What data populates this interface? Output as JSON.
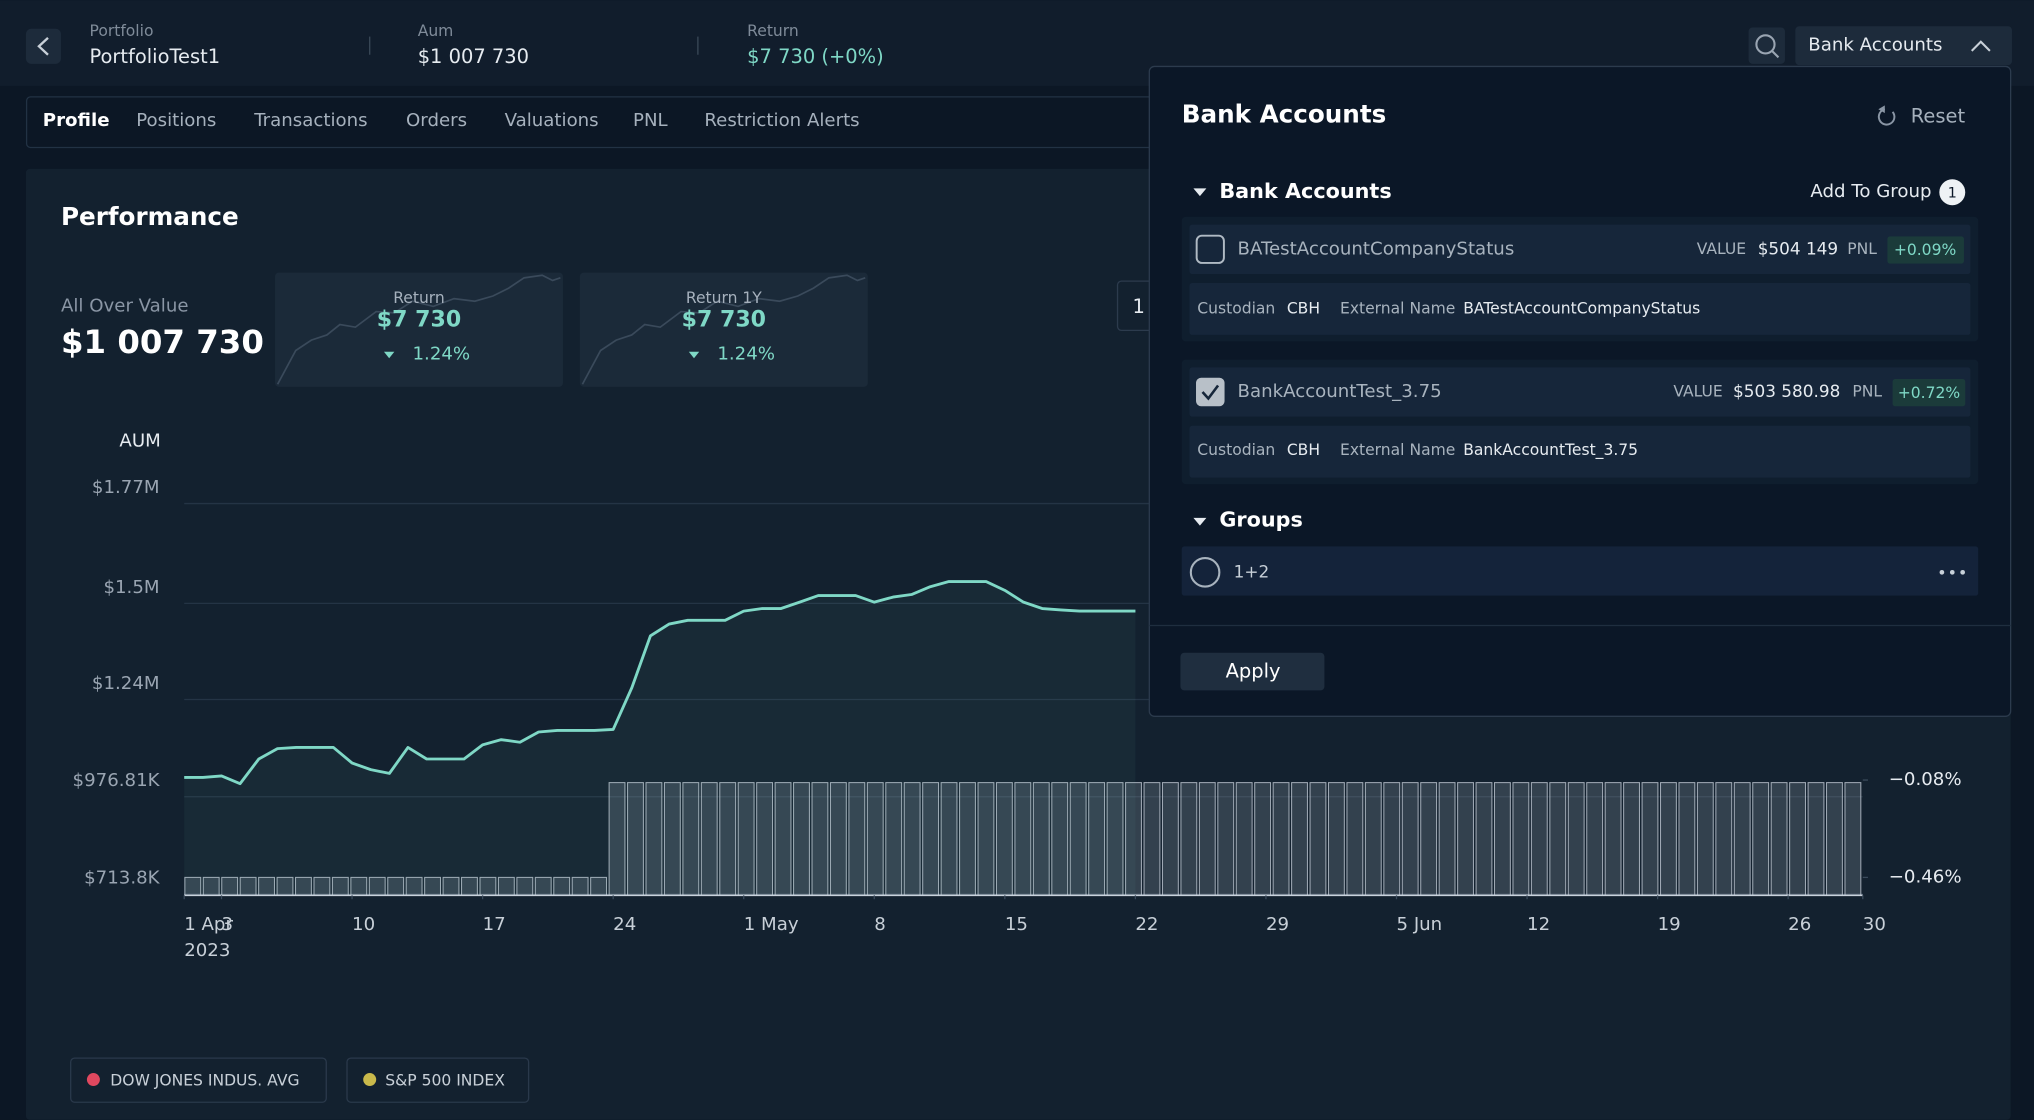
{
  "header": {
    "portfolio_label": "Portfolio",
    "portfolio": "PortfolioTest1",
    "aum_label": "Aum",
    "aum": "$1 007 730",
    "return_label": "Return",
    "return": "$7 730 (+0%)",
    "dropdown": "Bank Accounts"
  },
  "tabs": [
    "Profile",
    "Positions",
    "Transactions",
    "Orders",
    "Valuations",
    "PNL",
    "Restriction Alerts"
  ],
  "performance": {
    "title": "Performance",
    "all_over_value_label": "All Over Value",
    "all_over_value": "$1 007 730",
    "cards": [
      {
        "label": "Return",
        "value": "$7 730",
        "change": "1.24%"
      },
      {
        "label": "Return 1Y",
        "value": "$7 730",
        "change": "1.24%"
      }
    ],
    "period_button": "1"
  },
  "chart": {
    "y_label": "AUM",
    "ylim": [
      668000,
      1770000
    ],
    "yticks": [
      {
        "value": 713800,
        "label": "$713.8K"
      },
      {
        "value": 976810,
        "label": "$976.81K"
      },
      {
        "value": 1240000,
        "label": "$1.24M"
      },
      {
        "value": 1500000,
        "label": "$1.5M"
      },
      {
        "value": 1770000,
        "label": "$1.77M"
      }
    ],
    "y2lim": [
      -0.53,
      1.06
    ],
    "y2ticks": [
      {
        "value": -0.46,
        "label": "−0.46%"
      },
      {
        "value": -0.08,
        "label": "−0.08%"
      }
    ],
    "xlim": [
      0,
      90
    ],
    "xticks": [
      {
        "value": 0,
        "label": "1 Apr"
      },
      {
        "value": 2,
        "label": "3"
      },
      {
        "value": 9,
        "label": "10"
      },
      {
        "value": 16,
        "label": "17"
      },
      {
        "value": 23,
        "label": "24"
      },
      {
        "value": 30,
        "label": "1 May"
      },
      {
        "value": 37,
        "label": "8"
      },
      {
        "value": 44,
        "label": "15"
      },
      {
        "value": 51,
        "label": "22"
      },
      {
        "value": 58,
        "label": "29"
      },
      {
        "value": 65,
        "label": "5 Jun"
      },
      {
        "value": 72,
        "label": "12"
      },
      {
        "value": 79,
        "label": "19"
      },
      {
        "value": 86,
        "label": "26"
      },
      {
        "value": 90,
        "label": "30"
      }
    ],
    "year_label": "2023",
    "grid": true,
    "line": {
      "color": "#7fd8c6",
      "values": [
        987000,
        987000,
        991000,
        970000,
        1037000,
        1065000,
        1068000,
        1068000,
        1068000,
        1026000,
        1008000,
        998000,
        1068000,
        1037000,
        1037000,
        1037000,
        1075000,
        1089000,
        1082000,
        1110000,
        1114000,
        1114000,
        1114000,
        1117000,
        1230000,
        1370000,
        1402000,
        1412000,
        1412000,
        1412000,
        1437000,
        1444000,
        1444000,
        1461000,
        1479000,
        1479000,
        1479000,
        1461000,
        1475000,
        1482000,
        1503000,
        1517000,
        1517000,
        1517000,
        1493000,
        1461000,
        1444000,
        1440000,
        1437000,
        1437000,
        1437000,
        1437000,
        null,
        null,
        null,
        null,
        null,
        null,
        null,
        null,
        null,
        null,
        null,
        null,
        null,
        null,
        null,
        null,
        null,
        null,
        null,
        null,
        null,
        null,
        null,
        null,
        null,
        null,
        null,
        null,
        null,
        null,
        null,
        null,
        null,
        null,
        null,
        null,
        null
      ]
    },
    "bars": {
      "axis": "y2",
      "color": "#c9d2dc",
      "values": [
        -0.46,
        -0.46,
        -0.46,
        -0.46,
        -0.46,
        -0.46,
        -0.46,
        -0.46,
        -0.46,
        -0.46,
        -0.46,
        -0.46,
        -0.46,
        -0.46,
        -0.46,
        -0.46,
        -0.46,
        -0.46,
        -0.46,
        -0.46,
        -0.46,
        -0.46,
        -0.46,
        -0.09,
        -0.09,
        -0.09,
        -0.09,
        -0.09,
        -0.09,
        -0.09,
        -0.09,
        -0.09,
        -0.09,
        -0.09,
        -0.09,
        -0.09,
        -0.09,
        -0.09,
        -0.09,
        -0.09,
        -0.09,
        -0.09,
        -0.09,
        -0.09,
        -0.09,
        -0.09,
        -0.09,
        -0.09,
        -0.09,
        -0.09,
        -0.09,
        -0.09,
        -0.09,
        -0.09,
        -0.09,
        -0.09,
        -0.09,
        -0.09,
        -0.09,
        -0.09,
        -0.09,
        -0.09,
        -0.09,
        -0.09,
        -0.09,
        -0.09,
        -0.09,
        -0.09,
        -0.09,
        -0.09,
        -0.09,
        -0.09,
        -0.09,
        -0.09,
        -0.09,
        -0.09,
        -0.09,
        -0.09,
        -0.09,
        -0.09,
        -0.09,
        -0.09,
        -0.09,
        -0.09,
        -0.09,
        -0.09,
        -0.09,
        -0.09,
        -0.09,
        -0.09,
        -0.09
      ]
    }
  },
  "legend": [
    {
      "name": "DOW JONES INDUS. AVG",
      "color": "#e0485f"
    },
    {
      "name": "S&P 500 INDEX",
      "color": "#c9b94b"
    }
  ],
  "panel": {
    "title": "Bank Accounts",
    "reset": "Reset",
    "section": "Bank Accounts",
    "add_to_group": "Add To Group",
    "badge": "1",
    "accounts": [
      {
        "name": "BATestAccountCompanyStatus",
        "checked": false,
        "value_label": "VALUE",
        "value": "$504 149",
        "pnl_label": "PNL",
        "pnl": "+0.09%",
        "custodian_label": "Custodian",
        "custodian": "CBH",
        "external_label": "External Name",
        "external": "BATestAccountCompanyStatus"
      },
      {
        "name": "BankAccountTest_3.75",
        "checked": true,
        "value_label": "VALUE",
        "value": "$503 580.98",
        "pnl_label": "PNL",
        "pnl": "+0.72%",
        "custodian_label": "Custodian",
        "custodian": "CBH",
        "external_label": "External Name",
        "external": "BankAccountTest_3.75"
      }
    ],
    "groups_title": "Groups",
    "groups": [
      "1+2"
    ],
    "apply": "Apply"
  }
}
